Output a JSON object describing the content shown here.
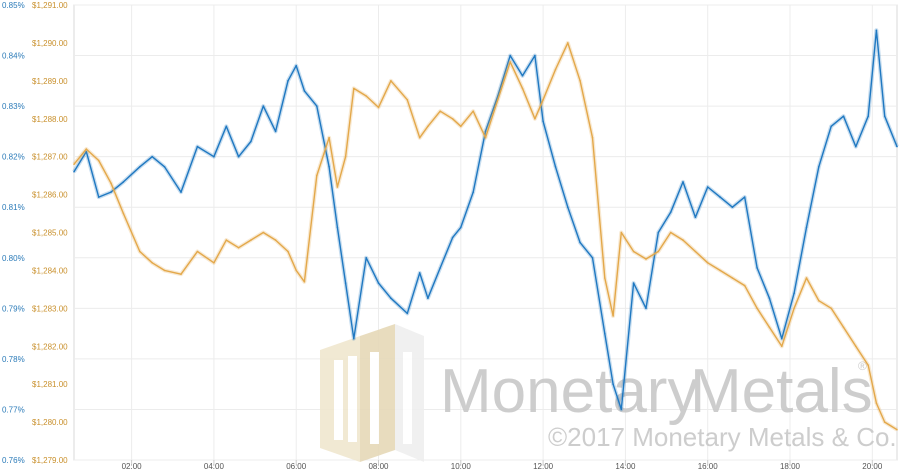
{
  "chart_data": {
    "type": "line",
    "title": "",
    "xlabel": "",
    "ylabel": "",
    "x_ticks": [
      "02:00",
      "04:00",
      "06:00",
      "08:00",
      "10:00",
      "12:00",
      "14:00",
      "16:00",
      "18:00",
      "20:00"
    ],
    "x_range_hours": [
      0.6,
      20.6
    ],
    "y_left": {
      "ticks": [
        "0.85%",
        "0.84%",
        "0.83%",
        "0.82%",
        "0.81%",
        "0.80%",
        "0.79%",
        "0.78%",
        "0.77%",
        "0.76%"
      ],
      "range": [
        0.76,
        0.85
      ],
      "unit": "%"
    },
    "y_right": {
      "ticks": [
        "$1,291.00",
        "$1,290.00",
        "$1,289.00",
        "$1,288.00",
        "$1,287.00",
        "$1,286.00",
        "$1,285.00",
        "$1,284.00",
        "$1,283.00",
        "$1,282.00",
        "$1,281.00",
        "$1,280.00",
        "$1,279.00"
      ],
      "range": [
        1279,
        1291
      ],
      "unit": "USD"
    },
    "grid": true,
    "series": [
      {
        "axis": "left",
        "color": "#1f78c1",
        "x": [
          0.6,
          0.9,
          1.2,
          1.5,
          1.8,
          2.2,
          2.5,
          2.8,
          3.2,
          3.6,
          4.0,
          4.3,
          4.6,
          4.9,
          5.2,
          5.5,
          5.8,
          6.0,
          6.2,
          6.5,
          6.8,
          7.0,
          7.2,
          7.4,
          7.7,
          8.0,
          8.3,
          8.7,
          9.0,
          9.2,
          9.5,
          9.8,
          10.0,
          10.3,
          10.6,
          10.9,
          11.2,
          11.5,
          11.8,
          12.0,
          12.3,
          12.6,
          12.9,
          13.2,
          13.5,
          13.7,
          13.9,
          14.2,
          14.5,
          14.8,
          15.1,
          15.4,
          15.7,
          16.0,
          16.3,
          16.6,
          16.9,
          17.2,
          17.5,
          17.8,
          18.1,
          18.4,
          18.7,
          19.0,
          19.3,
          19.6,
          19.9,
          20.1,
          20.3,
          20.6
        ],
        "y": [
          0.817,
          0.821,
          0.812,
          0.813,
          0.815,
          0.818,
          0.82,
          0.818,
          0.813,
          0.822,
          0.82,
          0.826,
          0.82,
          0.823,
          0.83,
          0.825,
          0.835,
          0.838,
          0.833,
          0.83,
          0.818,
          0.806,
          0.795,
          0.784,
          0.8,
          0.795,
          0.792,
          0.789,
          0.797,
          0.792,
          0.798,
          0.804,
          0.806,
          0.813,
          0.825,
          0.832,
          0.84,
          0.836,
          0.84,
          0.827,
          0.818,
          0.81,
          0.803,
          0.8,
          0.785,
          0.775,
          0.77,
          0.795,
          0.79,
          0.805,
          0.809,
          0.815,
          0.808,
          0.814,
          0.812,
          0.81,
          0.812,
          0.798,
          0.792,
          0.784,
          0.793,
          0.806,
          0.818,
          0.826,
          0.828,
          0.822,
          0.828,
          0.845,
          0.828,
          0.822
        ]
      },
      {
        "axis": "right",
        "color": "#e3a84a",
        "x": [
          0.6,
          0.9,
          1.2,
          1.5,
          1.8,
          2.2,
          2.5,
          2.8,
          3.2,
          3.6,
          4.0,
          4.3,
          4.6,
          4.9,
          5.2,
          5.5,
          5.8,
          6.0,
          6.2,
          6.5,
          6.8,
          7.0,
          7.2,
          7.4,
          7.7,
          8.0,
          8.3,
          8.7,
          9.0,
          9.2,
          9.5,
          9.8,
          10.0,
          10.3,
          10.6,
          10.9,
          11.2,
          11.5,
          11.8,
          12.0,
          12.3,
          12.6,
          12.9,
          13.2,
          13.5,
          13.7,
          13.9,
          14.2,
          14.5,
          14.8,
          15.1,
          15.4,
          15.7,
          16.0,
          16.3,
          16.6,
          16.9,
          17.2,
          17.5,
          17.8,
          18.1,
          18.4,
          18.7,
          19.0,
          19.3,
          19.6,
          19.9,
          20.1,
          20.3,
          20.6
        ],
        "y": [
          1286.8,
          1287.2,
          1286.9,
          1286.3,
          1285.5,
          1284.5,
          1284.2,
          1284.0,
          1283.9,
          1284.5,
          1284.2,
          1284.8,
          1284.6,
          1284.8,
          1285.0,
          1284.8,
          1284.5,
          1284.0,
          1283.7,
          1286.5,
          1287.5,
          1286.2,
          1287.0,
          1288.8,
          1288.6,
          1288.3,
          1289.0,
          1288.5,
          1287.5,
          1287.8,
          1288.2,
          1288.0,
          1287.8,
          1288.2,
          1287.5,
          1288.5,
          1289.5,
          1288.8,
          1288.0,
          1288.5,
          1289.3,
          1290.0,
          1289.0,
          1287.5,
          1283.8,
          1282.8,
          1285.0,
          1284.5,
          1284.3,
          1284.5,
          1285.0,
          1284.8,
          1284.5,
          1284.2,
          1284.0,
          1283.8,
          1283.6,
          1283.0,
          1282.5,
          1282.0,
          1283.0,
          1283.8,
          1283.2,
          1283.0,
          1282.5,
          1282.0,
          1281.5,
          1280.5,
          1280.0,
          1279.8
        ]
      }
    ]
  },
  "watermark": {
    "brand": "Monetary",
    "brand2": "Metals",
    "registered": "®",
    "copyright": "©2017 Monetary Metals & Co."
  }
}
